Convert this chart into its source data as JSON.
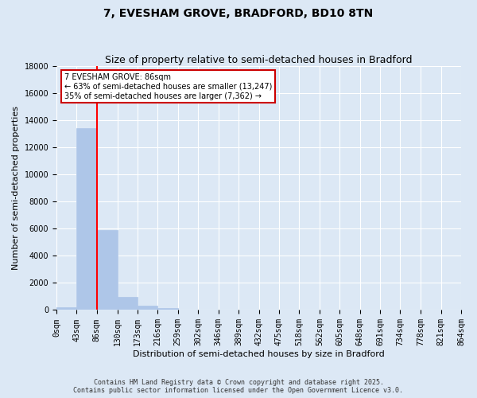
{
  "title": "7, EVESHAM GROVE, BRADFORD, BD10 8TN",
  "subtitle": "Size of property relative to semi-detached houses in Bradford",
  "xlabel": "Distribution of semi-detached houses by size in Bradford",
  "ylabel": "Number of semi-detached properties",
  "bin_edges": [
    0,
    43,
    86,
    130,
    173,
    216,
    259,
    302,
    346,
    389,
    432,
    475,
    518,
    562,
    605,
    648,
    691,
    734,
    778,
    821,
    864
  ],
  "bar_heights": [
    200,
    13400,
    5900,
    950,
    300,
    150,
    0,
    0,
    0,
    0,
    0,
    0,
    0,
    0,
    0,
    0,
    0,
    0,
    0,
    0
  ],
  "bar_color": "#aec6e8",
  "bar_edgecolor": "#aec6e8",
  "red_line_x": 86,
  "ylim": [
    0,
    18000
  ],
  "yticks": [
    0,
    2000,
    4000,
    6000,
    8000,
    10000,
    12000,
    14000,
    16000,
    18000
  ],
  "annotation_title": "7 EVESHAM GROVE: 86sqm",
  "annotation_line1": "← 63% of semi-detached houses are smaller (13,247)",
  "annotation_line2": "35% of semi-detached houses are larger (7,362) →",
  "annotation_box_color": "#ffffff",
  "annotation_box_edgecolor": "#cc0000",
  "footer_line1": "Contains HM Land Registry data © Crown copyright and database right 2025.",
  "footer_line2": "Contains public sector information licensed under the Open Government Licence v3.0.",
  "background_color": "#dce8f5",
  "plot_background": "#dce8f5",
  "title_fontsize": 10,
  "subtitle_fontsize": 9,
  "tick_label_fontsize": 7,
  "ylabel_fontsize": 8,
  "xlabel_fontsize": 8,
  "tick_labels": [
    "0sqm",
    "43sqm",
    "86sqm",
    "130sqm",
    "173sqm",
    "216sqm",
    "259sqm",
    "302sqm",
    "346sqm",
    "389sqm",
    "432sqm",
    "475sqm",
    "518sqm",
    "562sqm",
    "605sqm",
    "648sqm",
    "691sqm",
    "734sqm",
    "778sqm",
    "821sqm",
    "864sqm"
  ]
}
